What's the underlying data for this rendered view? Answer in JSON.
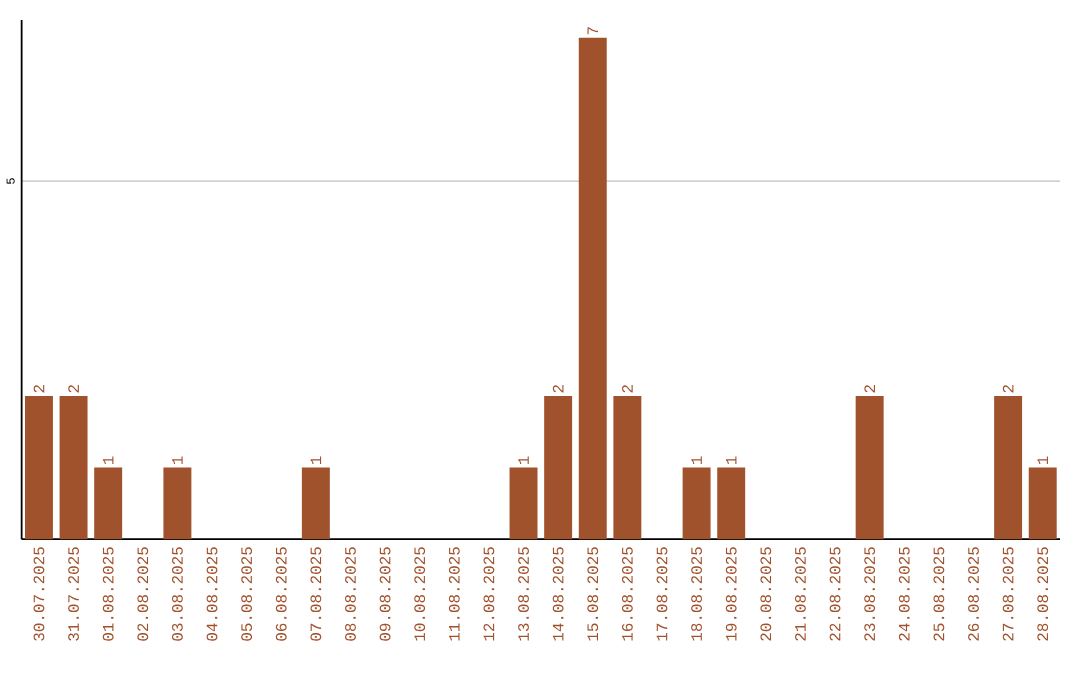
{
  "chart_data": {
    "type": "bar",
    "categories": [
      "30.07.2025",
      "31.07.2025",
      "01.08.2025",
      "02.08.2025",
      "03.08.2025",
      "04.08.2025",
      "05.08.2025",
      "06.08.2025",
      "07.08.2025",
      "08.08.2025",
      "09.08.2025",
      "10.08.2025",
      "11.08.2025",
      "12.08.2025",
      "13.08.2025",
      "14.08.2025",
      "15.08.2025",
      "16.08.2025",
      "17.08.2025",
      "18.08.2025",
      "19.08.2025",
      "20.08.2025",
      "21.08.2025",
      "22.08.2025",
      "23.08.2025",
      "24.08.2025",
      "25.08.2025",
      "26.08.2025",
      "27.08.2025",
      "28.08.2025"
    ],
    "values": [
      2,
      2,
      1,
      0,
      1,
      0,
      0,
      0,
      1,
      0,
      0,
      0,
      0,
      0,
      1,
      2,
      7,
      2,
      0,
      1,
      1,
      0,
      0,
      0,
      2,
      0,
      0,
      0,
      2,
      1
    ],
    "value_labels": [
      "2",
      "2",
      "1",
      null,
      "1",
      null,
      null,
      null,
      "1",
      null,
      null,
      null,
      null,
      null,
      "1",
      "2",
      "7",
      "2",
      null,
      "1",
      "1",
      null,
      null,
      null,
      "2",
      null,
      null,
      null,
      "2",
      "1"
    ],
    "color": "#a0522d",
    "ylim": [
      0,
      7.25
    ],
    "yticks": [
      5
    ],
    "grid": "y"
  }
}
